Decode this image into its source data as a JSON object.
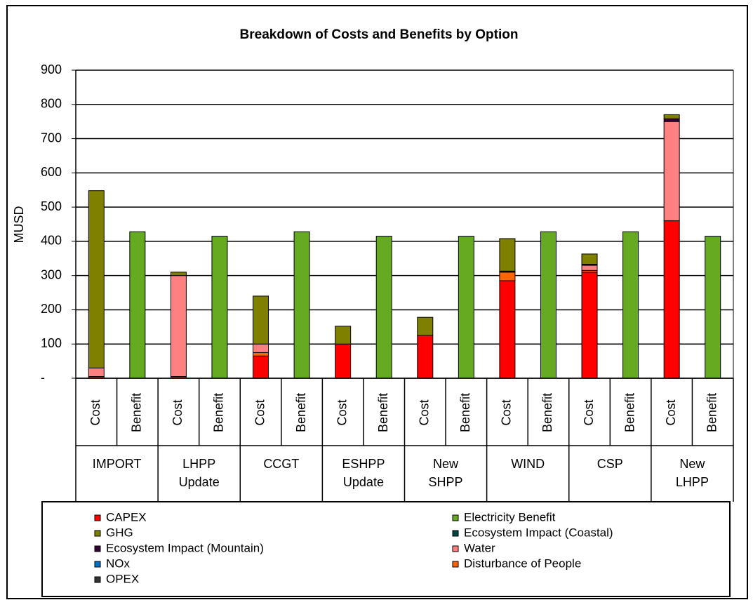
{
  "chart_data": {
    "type": "stacked-bar",
    "title": "Breakdown of Costs and Benefits by Option",
    "y_label": "MUSD",
    "groups": [
      "IMPORT",
      "LHPP Update",
      "CCGT",
      "ESHPP Update",
      "New SHPP",
      "WIND",
      "CSP",
      "New LHPP"
    ],
    "categories": [
      "Cost",
      "Benefit",
      "Cost",
      "Benefit",
      "Cost",
      "Benefit",
      "Cost",
      "Benefit",
      "Cost",
      "Benefit",
      "Cost",
      "Benefit",
      "Cost",
      "Benefit",
      "Cost",
      "Benefit"
    ],
    "ylim": [
      0,
      900
    ],
    "yticks": [
      {
        "value": 0,
        "label": "-"
      },
      100,
      200,
      300,
      400,
      500,
      600,
      700,
      800,
      900
    ],
    "grid": true,
    "series": [
      {
        "name": "CAPEX",
        "color": "#ff0000",
        "values": [
          5,
          null,
          5,
          null,
          65,
          null,
          100,
          null,
          125,
          null,
          285,
          null,
          310,
          null,
          460,
          null
        ]
      },
      {
        "name": "GHG",
        "color": "#808000",
        "values": [
          518,
          null,
          10,
          null,
          140,
          null,
          52,
          null,
          53,
          null,
          95,
          null,
          30,
          null,
          12,
          null
        ]
      },
      {
        "name": "Ecosystem Impact (Mountain)",
        "color": "#330033",
        "values": [
          null,
          null,
          null,
          null,
          null,
          null,
          null,
          null,
          null,
          null,
          3,
          null,
          3,
          null,
          8,
          null
        ]
      },
      {
        "name": "NOx",
        "color": "#0070c0",
        "values": [
          null,
          null,
          null,
          null,
          null,
          null,
          null,
          null,
          null,
          null,
          null,
          null,
          null,
          null,
          null,
          null
        ]
      },
      {
        "name": "OPEX",
        "color": "#333333",
        "values": [
          null,
          null,
          null,
          null,
          null,
          null,
          null,
          null,
          null,
          null,
          null,
          null,
          null,
          null,
          null,
          null
        ]
      },
      {
        "name": "Electricity Benefit",
        "color": "#66aa22",
        "values": [
          null,
          428,
          null,
          415,
          null,
          428,
          null,
          415,
          null,
          415,
          null,
          428,
          null,
          428,
          null,
          415
        ]
      },
      {
        "name": "Ecosystem Impact (Coastal)",
        "color": "#004444",
        "values": [
          null,
          null,
          null,
          null,
          null,
          null,
          null,
          null,
          null,
          null,
          null,
          null,
          null,
          null,
          null,
          null
        ]
      },
      {
        "name": "Water",
        "color": "#ff8080",
        "values": [
          25,
          null,
          295,
          null,
          25,
          null,
          null,
          null,
          null,
          null,
          null,
          null,
          15,
          null,
          290,
          null
        ]
      },
      {
        "name": "Disturbance of People",
        "color": "#ff6600",
        "values": [
          null,
          null,
          null,
          null,
          10,
          null,
          null,
          null,
          null,
          null,
          25,
          null,
          5,
          null,
          null,
          null
        ]
      }
    ]
  }
}
